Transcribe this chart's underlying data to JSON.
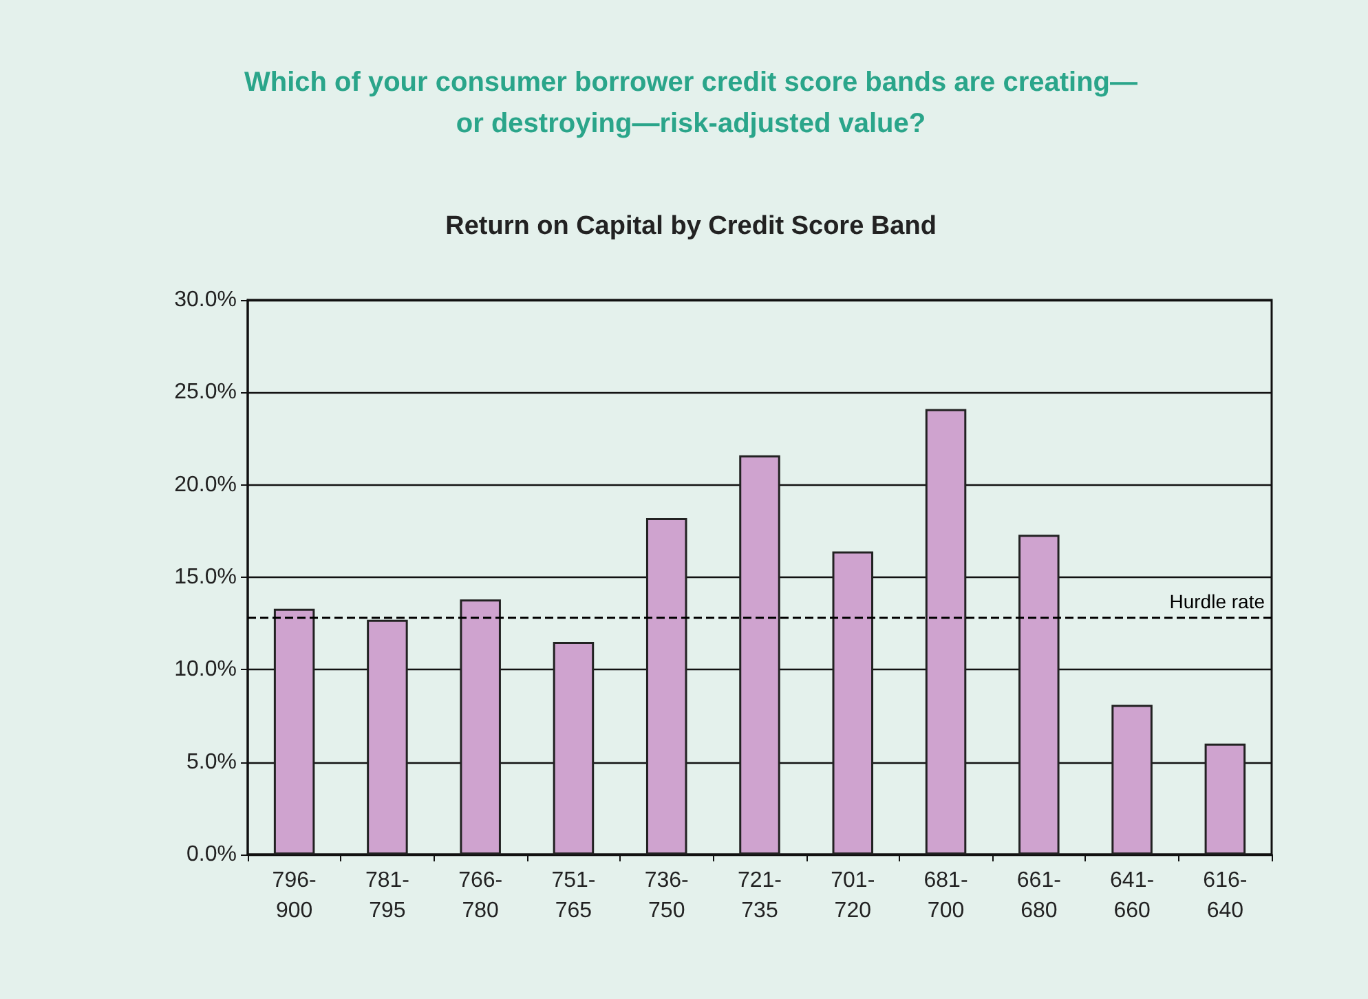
{
  "chart_data": {
    "type": "bar",
    "title": "Which of your consumer borrower credit score bands are creating—\nor destroying—risk-adjusted value?",
    "subtitle": "Return on Capital by Credit Score Band",
    "categories": [
      "796-900",
      "781-795",
      "766-780",
      "751-765",
      "736-750",
      "721-735",
      "701-720",
      "681-700",
      "661-680",
      "641-660",
      "616-640"
    ],
    "series": [
      {
        "color": "#cfa3cf",
        "values": [
          13.3,
          12.7,
          13.8,
          11.5,
          18.2,
          21.6,
          16.4,
          24.1,
          17.3,
          8.1,
          6.0
        ]
      }
    ],
    "ylim": [
      0,
      30
    ],
    "yticks": [
      {
        "value": 0,
        "label": "0.0%"
      },
      {
        "value": 5,
        "label": "5.0%"
      },
      {
        "value": 10,
        "label": "10.0%"
      },
      {
        "value": 15,
        "label": "15.0%"
      },
      {
        "value": 20,
        "label": "20.0%"
      },
      {
        "value": 25,
        "label": "25.0%"
      },
      {
        "value": 30,
        "label": "30.0%"
      }
    ],
    "ref_lines": [
      {
        "axis": "y",
        "value": 12.8,
        "label": "Hurdle rate",
        "color": "#000000",
        "line_style": "dashed"
      }
    ],
    "grid": "y"
  }
}
